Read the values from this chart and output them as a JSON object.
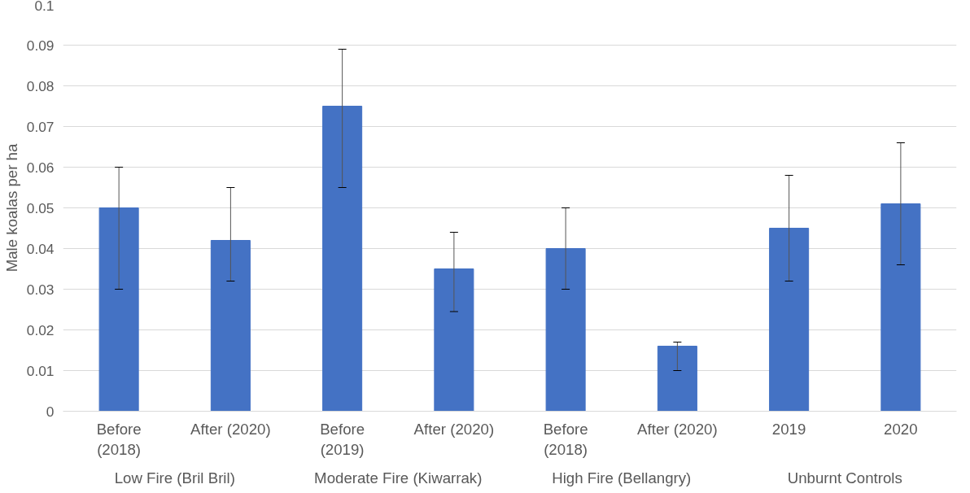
{
  "chart_data": {
    "type": "bar",
    "ylabel": "Male koalas per ha",
    "categories": [
      "Before (2018)",
      "After (2020)",
      "Before (2019)",
      "After (2020)",
      "Before (2018)",
      "After (2020)",
      "2019",
      "2020"
    ],
    "values": [
      0.05,
      0.042,
      0.075,
      0.035,
      0.04,
      0.016,
      0.045,
      0.051
    ],
    "errors": [
      [
        0.03,
        0.06
      ],
      [
        0.032,
        0.055
      ],
      [
        0.055,
        0.089
      ],
      [
        0.0245,
        0.044
      ],
      [
        0.03,
        0.05
      ],
      [
        0.01,
        0.017
      ],
      [
        0.032,
        0.058
      ],
      [
        0.036,
        0.066
      ]
    ],
    "color": "#4472c4",
    "ylim": [
      0,
      0.1
    ],
    "yticks": [
      0,
      0.01,
      0.02,
      0.03,
      0.04,
      0.05,
      0.06,
      0.07,
      0.08,
      0.09,
      0.1
    ],
    "grid": "y",
    "annotations": [
      "Low Fire (Bril Bril)",
      "Moderate Fire (Kiwarrak)",
      "High Fire (Bellangry)",
      "Unburnt Controls"
    ]
  }
}
